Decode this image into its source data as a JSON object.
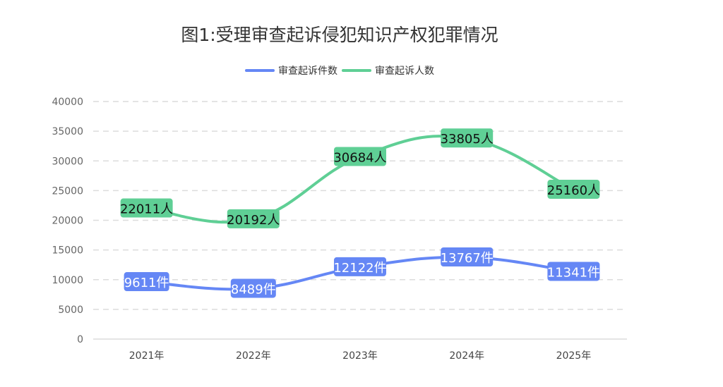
{
  "chart_data": {
    "type": "line",
    "title": "图1:受理审查起诉侵犯知识产权犯罪情况",
    "categories": [
      "2021年",
      "2022年",
      "2023年",
      "2024年",
      "2025年"
    ],
    "ylim": [
      0,
      40000
    ],
    "yticks": [
      0,
      5000,
      10000,
      15000,
      20000,
      25000,
      30000,
      35000,
      40000
    ],
    "grid": true,
    "legend_position": "top",
    "smooth": true,
    "series": [
      {
        "name": "审查起诉件数",
        "values": [
          9611,
          8489,
          12122,
          13767,
          11341
        ],
        "unit": "件",
        "color": "#6587f5",
        "label_text_color": "#ffffff"
      },
      {
        "name": "审查起诉人数",
        "values": [
          22011,
          20192,
          30684,
          33805,
          25160
        ],
        "unit": "人",
        "color": "#5fcf95",
        "label_text_color": "#111111"
      }
    ]
  }
}
